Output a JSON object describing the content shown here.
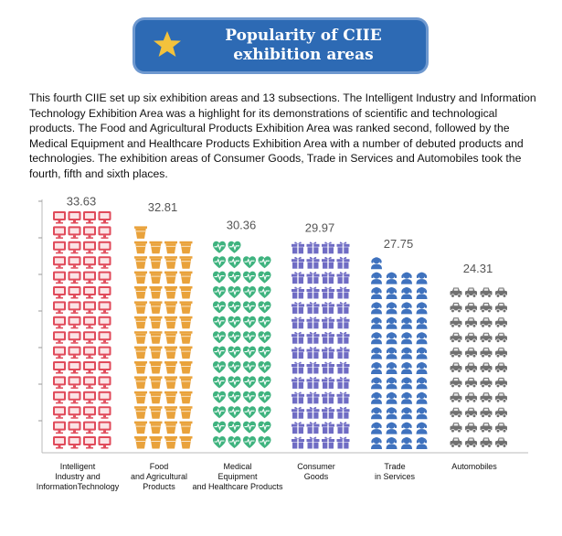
{
  "header": {
    "title_line1": "Popularity of CIIE",
    "title_line2": "exhibition areas",
    "icon": "star-icon"
  },
  "intro": "This fourth CIIE set up six exhibition areas and 13 subsections. The Intelligent Industry and Information Technology Exhibition Area was a highlight for its demonstrations of scientific and technological products. The Food and Agricultural Products Exhibition Area was ranked second, followed by the Medical Equipment and Healthcare Products Exhibition Area with a number of debuted products and technologies. The exhibition areas of Consumer Goods, Trade in Services and Automobiles took the fourth, fifth and sixth places.",
  "chart_data": {
    "type": "bar",
    "title": "",
    "xlabel": "",
    "ylabel": "",
    "ylim": [
      0,
      36
    ],
    "categories": [
      "Intelligent Industry and InformationTechnology",
      "Food and Agricultural Products",
      "Medical Equipment and Healthcare Products",
      "Consumer Goods",
      "Trade in Services",
      "Automobiles"
    ],
    "category_lines": [
      [
        "Intelligent",
        "Industry and",
        "InformationTechnology"
      ],
      [
        "Food",
        "and Agricultural",
        "Products"
      ],
      [
        "Medical",
        "Equipment",
        "and Healthcare Products"
      ],
      [
        "Consumer",
        "Goods"
      ],
      [
        "Trade",
        "in Services"
      ],
      [
        "Automobiles"
      ]
    ],
    "values": [
      33.63,
      32.81,
      30.36,
      29.97,
      27.75,
      24.31
    ],
    "value_labels": [
      "33.63",
      "32.81",
      "30.36",
      "29.97",
      "27.75",
      "24.31"
    ],
    "icons": [
      "monitor-icon",
      "cup-icon",
      "heartbeat-icon",
      "gift-icon",
      "headset-person-icon",
      "car-icon"
    ],
    "colors": [
      "#e04a5a",
      "#e9a23b",
      "#3fb37f",
      "#6f6cc4",
      "#3f72be",
      "#707070"
    ],
    "grid": false,
    "legend": "none"
  }
}
